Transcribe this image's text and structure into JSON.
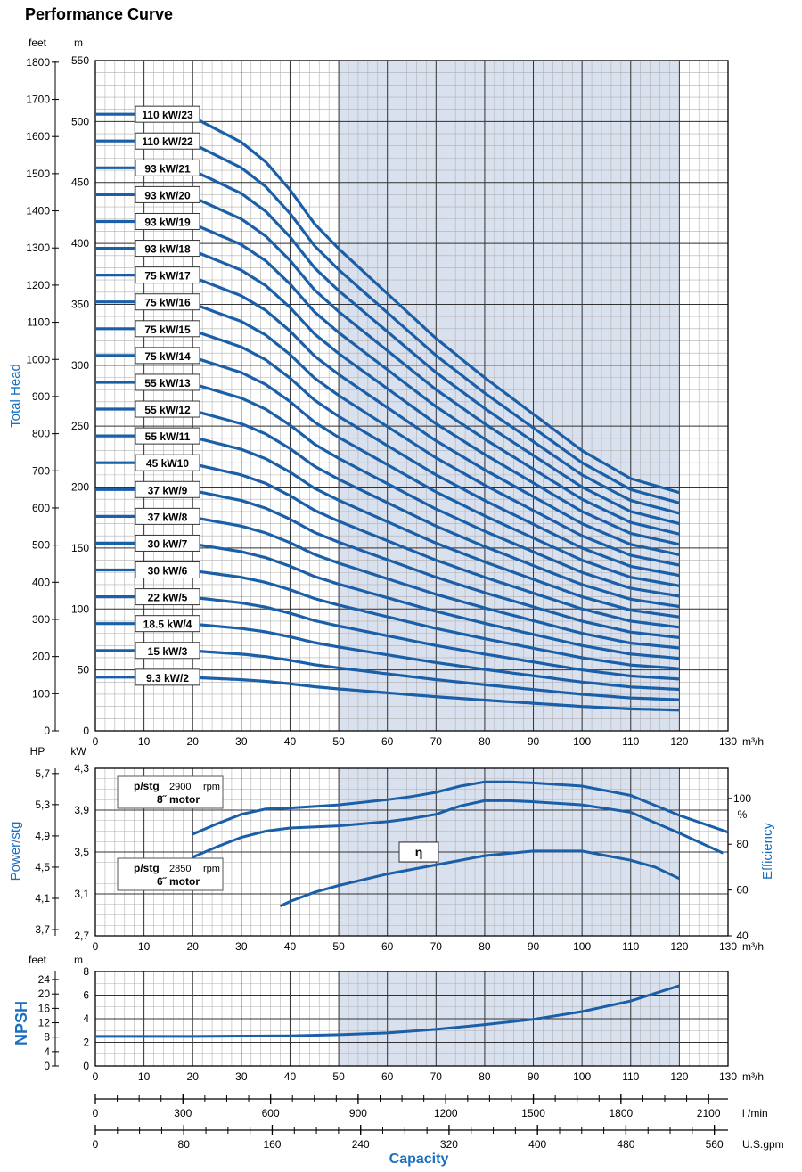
{
  "title": "Performance Curve",
  "colors": {
    "curve": "#1a5fa8",
    "shade": "#d9e1ef",
    "grid_major": "#333333",
    "grid_minor": "#b0b0b0",
    "axis_label": "#1a6fc0"
  },
  "chart_data": [
    {
      "type": "line",
      "name": "head",
      "ylabel": "Total Head",
      "units": {
        "x": "m³/h",
        "y_left": "feet",
        "y_right": "m"
      },
      "xlim": [
        0,
        130
      ],
      "ylim": [
        0,
        550
      ],
      "x_ticks": [
        0,
        10,
        20,
        30,
        40,
        50,
        60,
        70,
        80,
        90,
        100,
        110,
        120,
        130
      ],
      "y_ticks_m": [
        0,
        50,
        100,
        150,
        200,
        250,
        300,
        350,
        400,
        450,
        500,
        550
      ],
      "y_ticks_feet": [
        0,
        100,
        200,
        300,
        400,
        500,
        600,
        700,
        800,
        900,
        1000,
        1100,
        1200,
        1300,
        1400,
        1500,
        1600,
        1700,
        1800
      ],
      "shaded_x": [
        50,
        120
      ],
      "grid": true,
      "series": [
        {
          "name": "110 kW/23",
          "stages": 23,
          "label_y": 506
        },
        {
          "name": "110 kW/22",
          "stages": 22,
          "label_y": 484
        },
        {
          "name": "93 kW/21",
          "stages": 21,
          "label_y": 462
        },
        {
          "name": "93 kW/20",
          "stages": 20,
          "label_y": 440
        },
        {
          "name": "93 kW/19",
          "stages": 19,
          "label_y": 418
        },
        {
          "name": "93 kW/18",
          "stages": 18,
          "label_y": 396
        },
        {
          "name": "75 kW/17",
          "stages": 17,
          "label_y": 374
        },
        {
          "name": "75 kW/16",
          "stages": 16,
          "label_y": 352
        },
        {
          "name": "75 kW/15",
          "stages": 15,
          "label_y": 330
        },
        {
          "name": "75 kW/14",
          "stages": 14,
          "label_y": 308
        },
        {
          "name": "55 kW/13",
          "stages": 13,
          "label_y": 286
        },
        {
          "name": "55 kW/12",
          "stages": 12,
          "label_y": 264
        },
        {
          "name": "55 kW/11",
          "stages": 11,
          "label_y": 242
        },
        {
          "name": "45 kW10",
          "stages": 10,
          "label_y": 220
        },
        {
          "name": "37 kW/9",
          "stages": 9,
          "label_y": 198
        },
        {
          "name": "37 kW/8",
          "stages": 8,
          "label_y": 176
        },
        {
          "name": "30 kW/7",
          "stages": 7,
          "label_y": 154
        },
        {
          "name": "30 kW/6",
          "stages": 6,
          "label_y": 132
        },
        {
          "name": "22 kW/5",
          "stages": 5,
          "label_y": 110
        },
        {
          "name": "18.5 kW/4",
          "stages": 4,
          "label_y": 88
        },
        {
          "name": "15 kW/3",
          "stages": 3,
          "label_y": 66
        },
        {
          "name": "9.3 kW/2",
          "stages": 2,
          "label_y": 44
        }
      ],
      "per_stage_head_m": {
        "x": [
          0,
          10,
          20,
          30,
          35,
          40,
          45,
          50,
          60,
          70,
          80,
          90,
          100,
          110,
          120
        ],
        "y": [
          22.0,
          22.0,
          21.9,
          21.0,
          20.3,
          19.3,
          18.1,
          17.2,
          15.6,
          14.0,
          12.6,
          11.3,
          10.0,
          9.0,
          8.5
        ]
      }
    },
    {
      "type": "line",
      "name": "power",
      "ylabel_left": "Power/stg",
      "ylabel_right": "Efficiency",
      "units": {
        "x": "m³/h",
        "y_hp": "HP",
        "y_kw": "kW",
        "y_right": "%"
      },
      "xlim": [
        0,
        130
      ],
      "ylim_kw": [
        2.7,
        4.3
      ],
      "x_ticks": [
        0,
        10,
        20,
        30,
        40,
        50,
        60,
        70,
        80,
        90,
        100,
        110,
        120,
        130
      ],
      "y_ticks_kw": [
        "2,7",
        "3,1",
        "3,5",
        "3,9",
        "4,3"
      ],
      "y_ticks_hp": [
        "3,7",
        "4,1",
        "4,5",
        "4,9",
        "5,3",
        "5,7"
      ],
      "y_ticks_eff": [
        40,
        60,
        80,
        100
      ],
      "shaded_x": [
        50,
        120
      ],
      "legend_box_1": {
        "label": "p/stg",
        "rpm": "2900",
        "rpm_unit": "rpm",
        "motor": "8˝ motor"
      },
      "legend_box_2": {
        "label": "p/stg",
        "rpm": "2850",
        "rpm_unit": "rpm",
        "motor": "6˝ motor"
      },
      "efficiency_label": "η",
      "series": [
        {
          "name": "p/stg 2900 rpm 8˝ motor",
          "unit": "kW",
          "x": [
            20,
            25,
            30,
            35,
            40,
            50,
            60,
            65,
            70,
            75,
            80,
            85,
            90,
            100,
            110,
            120,
            130
          ],
          "y": [
            3.67,
            3.77,
            3.86,
            3.91,
            3.92,
            3.95,
            4.0,
            4.03,
            4.07,
            4.13,
            4.17,
            4.17,
            4.16,
            4.13,
            4.04,
            3.85,
            3.69
          ]
        },
        {
          "name": "p/stg 2850 rpm 6˝ motor",
          "unit": "kW",
          "x": [
            20,
            25,
            30,
            35,
            40,
            50,
            60,
            65,
            70,
            75,
            80,
            85,
            90,
            100,
            110,
            120,
            129
          ],
          "y": [
            3.45,
            3.55,
            3.64,
            3.7,
            3.73,
            3.75,
            3.79,
            3.82,
            3.86,
            3.94,
            3.99,
            3.99,
            3.98,
            3.95,
            3.88,
            3.68,
            3.49
          ]
        },
        {
          "name": "η",
          "unit": "%",
          "x": [
            38,
            40,
            45,
            50,
            60,
            70,
            80,
            90,
            95,
            100,
            105,
            110,
            115,
            120
          ],
          "y": [
            53,
            55,
            59,
            62,
            67,
            71,
            75,
            77,
            77,
            77,
            75,
            73,
            70,
            65
          ]
        }
      ]
    },
    {
      "type": "line",
      "name": "npsh",
      "ylabel": "NPSH",
      "units": {
        "x": "m³/h",
        "y_left": "feet",
        "y_right": "m"
      },
      "xlim": [
        0,
        130
      ],
      "ylim": [
        0,
        8
      ],
      "x_ticks": [
        0,
        10,
        20,
        30,
        40,
        50,
        60,
        70,
        80,
        90,
        100,
        110,
        120,
        130
      ],
      "y_ticks_m": [
        0,
        2,
        4,
        6,
        8
      ],
      "y_ticks_feet": [
        0,
        4,
        8,
        12,
        16,
        20,
        24
      ],
      "shaded_x": [
        50,
        120
      ],
      "series": [
        {
          "name": "NPSH",
          "x": [
            0,
            20,
            40,
            50,
            60,
            70,
            80,
            90,
            100,
            110,
            120
          ],
          "y": [
            2.5,
            2.5,
            2.55,
            2.65,
            2.8,
            3.1,
            3.5,
            3.95,
            4.6,
            5.5,
            6.8
          ]
        }
      ]
    }
  ],
  "capacity_axes": {
    "lmin": {
      "unit": "l /min",
      "ticks": [
        0,
        300,
        600,
        900,
        1200,
        1500,
        1800,
        2100
      ]
    },
    "usgpm": {
      "unit": "U.S.gpm",
      "ticks": [
        0,
        80,
        160,
        240,
        320,
        400,
        480,
        560
      ]
    },
    "xlabel": "Capacity"
  }
}
